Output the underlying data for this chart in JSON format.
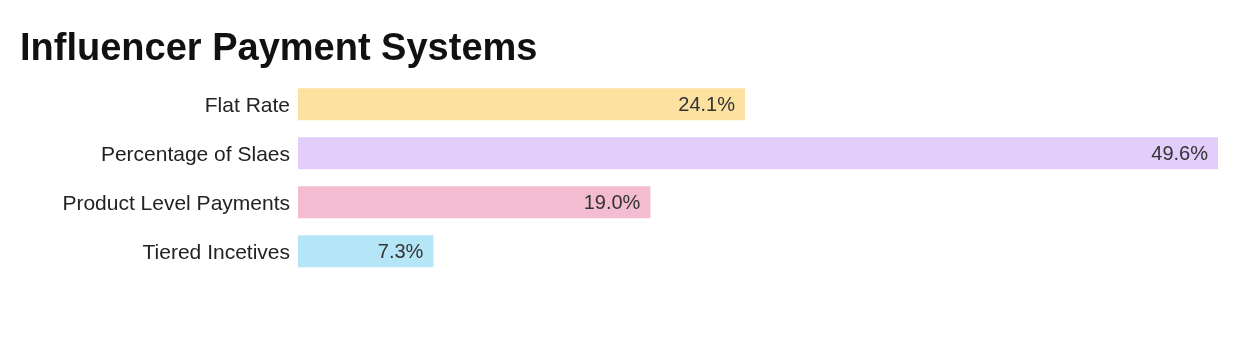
{
  "chart_data": {
    "type": "bar",
    "orientation": "horizontal",
    "title": "Influencer Payment Systems",
    "categories": [
      "Flat Rate",
      "Percentage of Slaes",
      "Product Level Payments",
      "Tiered Incetives"
    ],
    "values": [
      24.1,
      49.6,
      19.0,
      7.3
    ],
    "colors": [
      "#fde1a0",
      "#e2cdfb",
      "#f4bcd0",
      "#b4e6f8"
    ],
    "value_labels": [
      "24.1%",
      "49.6%",
      "19.0%",
      "7.3%"
    ]
  }
}
